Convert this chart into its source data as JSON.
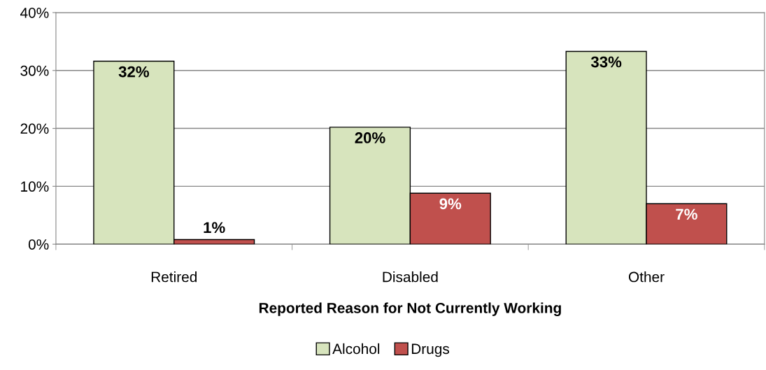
{
  "chart_data": {
    "type": "bar",
    "xlabel": "Reported Reason for Not Currently Working",
    "categories": [
      "Retired",
      "Disabled",
      "Other"
    ],
    "series": [
      {
        "name": "Alcohol",
        "color": "#d7e4bd",
        "values": [
          31.6,
          20.2,
          33.3
        ],
        "value_labels": [
          "32%",
          "20%",
          "33%"
        ]
      },
      {
        "name": "Drugs",
        "color": "#c0504d",
        "values": [
          0.8,
          8.8,
          7.0
        ],
        "value_labels": [
          "1%",
          "9%",
          "7%"
        ]
      }
    ],
    "ylim": [
      0,
      40
    ],
    "yticks": [
      {
        "value": 0,
        "label": "0%"
      },
      {
        "value": 10,
        "label": "10%"
      },
      {
        "value": 20,
        "label": "20%"
      },
      {
        "value": 30,
        "label": "30%"
      },
      {
        "value": 40,
        "label": "40%"
      }
    ],
    "grid": "y",
    "legend": "bottom"
  }
}
